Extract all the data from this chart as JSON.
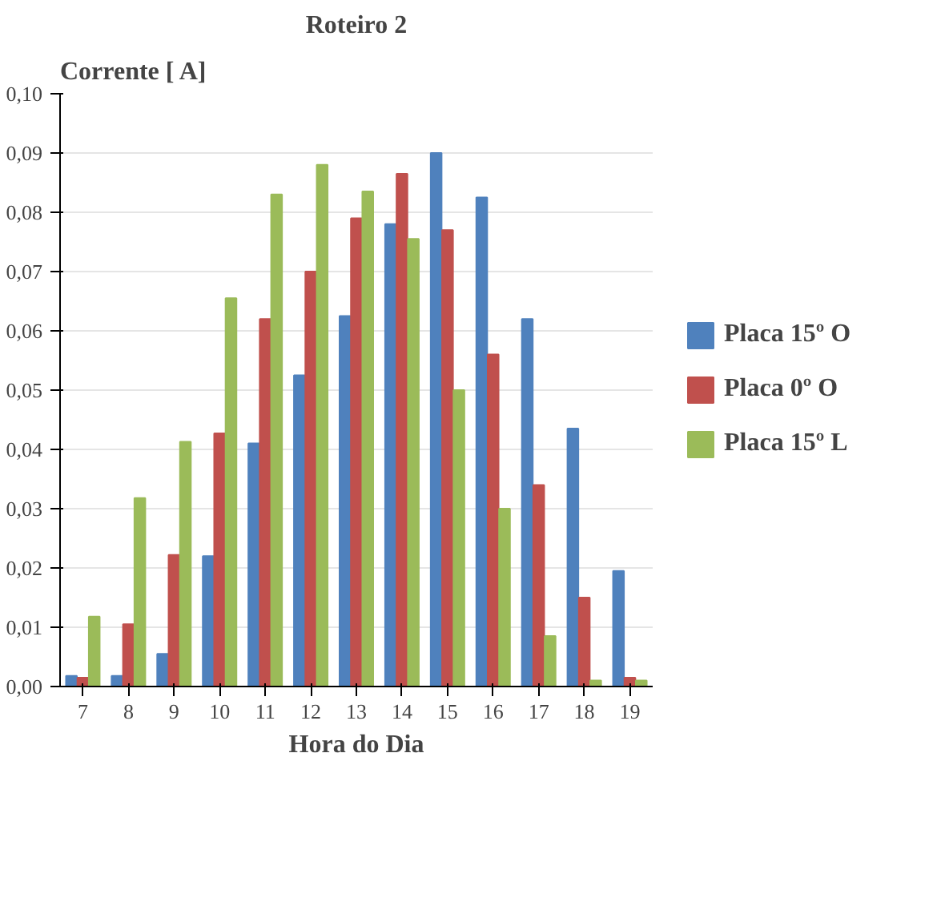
{
  "chart_data": {
    "type": "bar",
    "title": "Roteiro 2",
    "ylabel": "Corrente [ A]",
    "xlabel": "Hora do Dia",
    "categories": [
      "7",
      "8",
      "9",
      "10",
      "11",
      "12",
      "13",
      "14",
      "15",
      "16",
      "17",
      "18",
      "19"
    ],
    "series": [
      {
        "name": "Placa 15º O",
        "color": "#4f81bd",
        "values": [
          0.0018,
          0.0018,
          0.0055,
          0.022,
          0.041,
          0.0525,
          0.0625,
          0.078,
          0.09,
          0.0825,
          0.062,
          0.0435,
          0.0195
        ]
      },
      {
        "name": "Placa 0º O",
        "color": "#c0504d",
        "values": [
          0.0015,
          0.0105,
          0.0222,
          0.0427,
          0.062,
          0.07,
          0.079,
          0.0865,
          0.077,
          0.056,
          0.034,
          0.015,
          0.0015
        ]
      },
      {
        "name": "Placa 15º L",
        "color": "#9bbb59",
        "values": [
          0.0118,
          0.0318,
          0.0413,
          0.0655,
          0.083,
          0.088,
          0.0835,
          0.0755,
          0.05,
          0.03,
          0.0085,
          0.001,
          0.001
        ]
      }
    ],
    "ylim": [
      0,
      0.1
    ],
    "yticks": [
      {
        "value": 0,
        "label": "0,00"
      },
      {
        "value": 0.01,
        "label": "0,01"
      },
      {
        "value": 0.02,
        "label": "0,02"
      },
      {
        "value": 0.03,
        "label": "0,03"
      },
      {
        "value": 0.04,
        "label": "0,04"
      },
      {
        "value": 0.05,
        "label": "0,05"
      },
      {
        "value": 0.06,
        "label": "0,06"
      },
      {
        "value": 0.07,
        "label": "0,07"
      },
      {
        "value": 0.08,
        "label": "0,08"
      },
      {
        "value": 0.09,
        "label": "0,09"
      },
      {
        "value": 0.1,
        "label": "0,10"
      }
    ],
    "grid": "y",
    "legend": "right"
  }
}
